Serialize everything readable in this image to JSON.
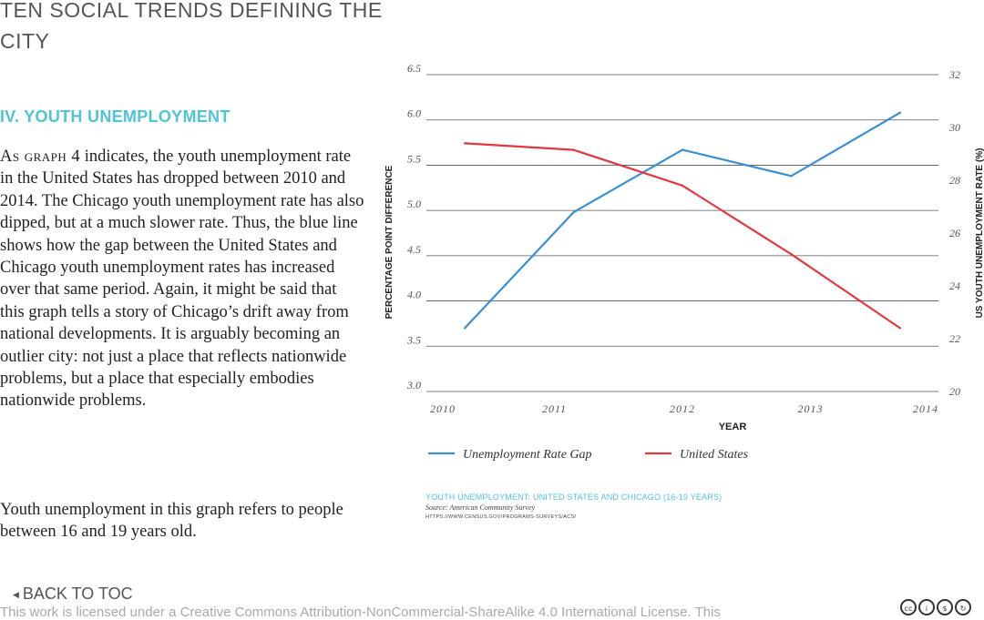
{
  "page": {
    "title": "TEN SOCIAL TRENDS DEFINING THE CITY",
    "section_heading": "IV. YOUTH UNEMPLOYMENT",
    "paragraph1_lead": "As graph 4",
    "paragraph1_rest": " indicates, the youth unemployment rate in the United States has dropped between 2010 and 2014. The Chicago youth unemployment rate has also dipped, but at a much slower rate. Thus, the blue line shows how the gap between the United States and Chicago youth unemployment rates has increased over that same period. Again, it might be said that this graph tells a story of Chicago’s drift away from national developments. It is arguably becoming an outlier city: not just a place that reflects nationwide problems, but a place that especially embodies nationwide problems.",
    "paragraph2": "Youth unemployment in this graph refers to people between 16 and 19 years old."
  },
  "source": {
    "title": "YOUTH UNEMPLOYMENT: UNITED STATES AND CHICAGO (16-19 YEARS)",
    "line": "Source: American Community Survey",
    "url": "HTTPS://WWW.CENSUS.GOV/PROGRAMS-SURVEYS/ACS/"
  },
  "footer": {
    "back_label": "BACK TO TOC",
    "license_text": "This work is licensed under a Creative Commons Attribution-NonCommercial-ShareAlike 4.0 International License. This",
    "cc_icons": [
      "cc-icon",
      "by-icon",
      "nc-icon",
      "sa-icon"
    ]
  },
  "colors": {
    "accent": "#4fc3d7",
    "gap_line": "#3a8fd0",
    "us_line": "#e2383f"
  },
  "chart_data": {
    "type": "line",
    "xlabel": "YEAR",
    "ylabel_left": "PERCENTAGE POINT DIFFERENCE",
    "ylabel_right": "US YOUTH UNEMPLOYMENT RATE (%)",
    "xlim": [
      2010,
      2014
    ],
    "ylim_left": [
      3.0,
      6.5
    ],
    "ylim_right": [
      20,
      32
    ],
    "x_ticks": [
      "2010",
      "2011",
      "2012",
      "2013",
      "2014"
    ],
    "y_ticks_left": [
      "3.0",
      "3.5",
      "4.0",
      "4.5",
      "5.0",
      "5.5",
      "6.0",
      "6.5"
    ],
    "y_ticks_right": [
      "20",
      "22",
      "24",
      "26",
      "28",
      "30",
      "32"
    ],
    "grid": true,
    "legend": "bottom",
    "series": [
      {
        "name": "Unemployment Rate Gap",
        "axis": "left",
        "color": "#3a8fd0",
        "x": [
          2010.3,
          2011.15,
          2012.0,
          2012.85,
          2013.7
        ],
        "y": [
          3.7,
          4.98,
          5.67,
          5.38,
          6.08
        ]
      },
      {
        "name": "United States",
        "axis": "right",
        "color": "#e2383f",
        "x": [
          2010.3,
          2011.15,
          2012.0,
          2012.85,
          2013.7
        ],
        "y": [
          29.4,
          29.15,
          27.8,
          25.2,
          22.4
        ]
      }
    ]
  }
}
